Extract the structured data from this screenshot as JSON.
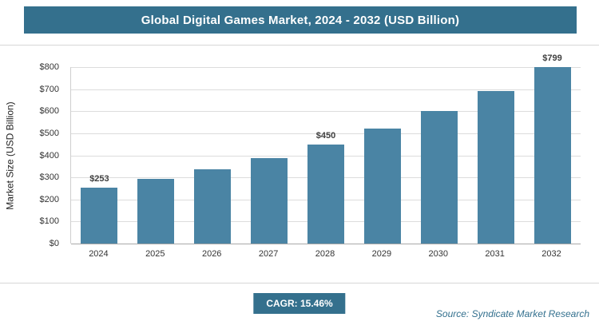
{
  "header": {
    "title": "Global Digital Games Market, 2024 - 2032 (USD Billion)"
  },
  "chart_data": {
    "type": "bar",
    "title": "Global Digital Games Market, 2024 - 2032 (USD Billion)",
    "categories": [
      "2024",
      "2025",
      "2026",
      "2027",
      "2028",
      "2029",
      "2030",
      "2031",
      "2032"
    ],
    "values": [
      253,
      292,
      337,
      389,
      450,
      520,
      600,
      692,
      799
    ],
    "data_labels": [
      "$253",
      null,
      null,
      null,
      "$450",
      null,
      null,
      null,
      "$799"
    ],
    "xlabel": "",
    "ylabel": "Market Size (USD Billion)",
    "ylim": [
      0,
      800
    ],
    "ytick_step": 100,
    "ytick_labels": [
      "$0",
      "$100",
      "$200",
      "$300",
      "$400",
      "$500",
      "$600",
      "$700",
      "$800"
    ],
    "grid": true,
    "legend": "none",
    "bar_color": "#4a84a4"
  },
  "footer": {
    "cagr_label": "CAGR: 15.46%",
    "source": "Source: Syndicate Market Research"
  },
  "colors": {
    "header_bg": "#34708d",
    "bar": "#4a84a4",
    "badge_bg": "#34708d",
    "source_text": "#33708e",
    "gridline": "#dcdcdc"
  }
}
